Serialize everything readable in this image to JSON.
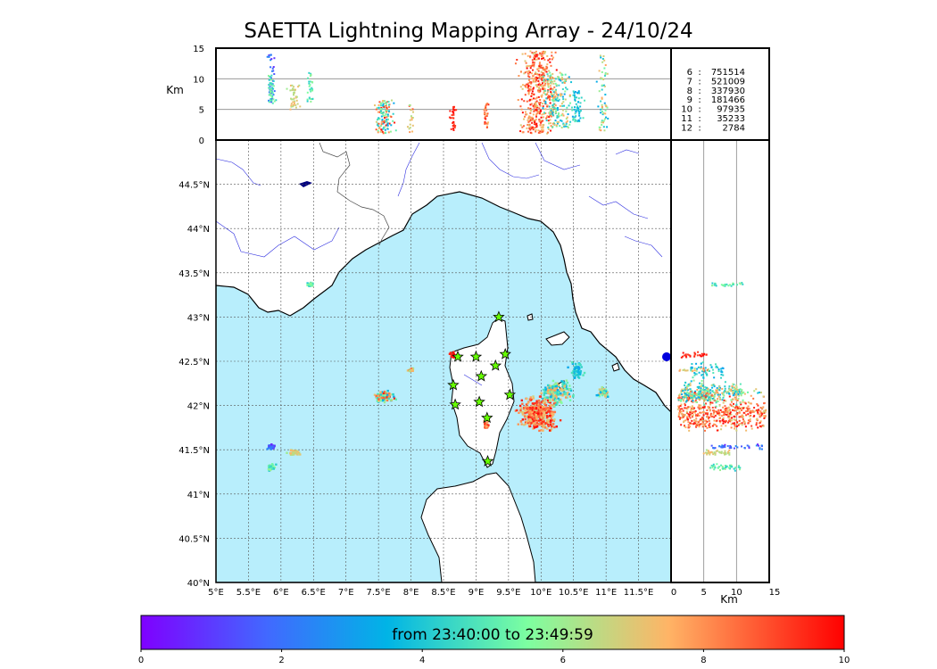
{
  "title": "SAETTA Lightning Mapping Array - 24/10/24",
  "colorbar": {
    "label": "from 23:40:00 to 23:49:59",
    "ticks": [
      "0",
      "2",
      "4",
      "6",
      "8",
      "10"
    ],
    "range": [
      0,
      10
    ],
    "colors": [
      "#7f00ff",
      "#4169ff",
      "#00b4e6",
      "#7dffa0",
      "#ffb466",
      "#ff0000"
    ]
  },
  "counts": [
    {
      "stations": "6",
      "sources": "751514",
      "color": "#000000"
    },
    {
      "stations": "7",
      "sources": "521009",
      "color": "#ff0000"
    },
    {
      "stations": "8",
      "sources": "337930",
      "color": "#000000"
    },
    {
      "stations": "9",
      "sources": "181466",
      "color": "#000000"
    },
    {
      "stations": "10",
      "sources": "97935",
      "color": "#000000"
    },
    {
      "stations": "11",
      "sources": "35233",
      "color": "#000000"
    },
    {
      "stations": "12",
      "sources": "2784",
      "color": "#000000"
    }
  ],
  "colors": {
    "sea": "#b8eefc",
    "land": "#ffffff",
    "rivers": "#3030e0",
    "stations": "#66ff00"
  },
  "chart_data": {
    "type": "scatter",
    "x_axis": {
      "label": "",
      "range": [
        5,
        12
      ],
      "ticks": [
        "5°E",
        "5.5°E",
        "6°E",
        "6.5°E",
        "7°E",
        "7.5°E",
        "8°E",
        "8.5°E",
        "9°E",
        "9.5°E",
        "10°E",
        "10.5°E",
        "11°E",
        "11.5°E"
      ]
    },
    "y_axis": {
      "label": "",
      "range": [
        40,
        45
      ],
      "ticks": [
        "40°N",
        "40.5°N",
        "41°N",
        "41.5°N",
        "42°N",
        "42.5°N",
        "43°N",
        "43.5°N",
        "44°N",
        "44.5°N"
      ]
    },
    "altitude_axis": {
      "label": "Km",
      "range": [
        0,
        15
      ],
      "ticks": [
        "0",
        "5",
        "10",
        "15"
      ]
    },
    "grid": true,
    "stations": [
      {
        "lon": 9.35,
        "lat": 43.0
      },
      {
        "lon": 8.72,
        "lat": 42.55
      },
      {
        "lon": 9.0,
        "lat": 42.55
      },
      {
        "lon": 9.45,
        "lat": 42.58
      },
      {
        "lon": 9.3,
        "lat": 42.45
      },
      {
        "lon": 9.08,
        "lat": 42.33
      },
      {
        "lon": 8.65,
        "lat": 42.23
      },
      {
        "lon": 9.52,
        "lat": 42.12
      },
      {
        "lon": 9.05,
        "lat": 42.04
      },
      {
        "lon": 8.68,
        "lat": 42.01
      },
      {
        "lon": 9.17,
        "lat": 41.86
      },
      {
        "lon": 9.18,
        "lat": 41.37
      }
    ],
    "clusters": [
      {
        "lon": 9.95,
        "lat": 41.9,
        "rlon": 0.38,
        "rlat": 0.25,
        "alt": [
          1,
          14.5
        ],
        "time": [
          6.8,
          10
        ],
        "n": 420
      },
      {
        "lon": 10.25,
        "lat": 42.15,
        "rlon": 0.3,
        "rlat": 0.18,
        "alt": [
          2,
          11
        ],
        "time": [
          3,
          8
        ],
        "n": 200
      },
      {
        "lon": 10.55,
        "lat": 42.4,
        "rlon": 0.15,
        "rlat": 0.12,
        "alt": [
          3,
          8
        ],
        "time": [
          3,
          5
        ],
        "n": 60
      },
      {
        "lon": 10.95,
        "lat": 42.15,
        "rlon": 0.12,
        "rlat": 0.07,
        "alt": [
          1,
          14
        ],
        "time": [
          3,
          8
        ],
        "n": 60
      },
      {
        "lon": 7.6,
        "lat": 42.1,
        "rlon": 0.2,
        "rlat": 0.08,
        "alt": [
          1,
          6.5
        ],
        "time": [
          3,
          10
        ],
        "n": 120
      },
      {
        "lon": 8.0,
        "lat": 42.4,
        "rlon": 0.07,
        "rlat": 0.04,
        "alt": [
          1,
          6
        ],
        "time": [
          6,
          9
        ],
        "n": 20
      },
      {
        "lon": 8.65,
        "lat": 42.57,
        "rlon": 0.06,
        "rlat": 0.05,
        "alt": [
          1.5,
          5.5
        ],
        "time": [
          9,
          10
        ],
        "n": 30
      },
      {
        "lon": 9.15,
        "lat": 41.78,
        "rlon": 0.06,
        "rlat": 0.08,
        "alt": [
          2,
          6
        ],
        "time": [
          7,
          10
        ],
        "n": 30
      },
      {
        "lon": 5.85,
        "lat": 41.53,
        "rlon": 0.08,
        "rlat": 0.04,
        "alt": [
          6,
          14
        ],
        "time": [
          0.5,
          3
        ],
        "n": 40
      },
      {
        "lon": 5.85,
        "lat": 41.3,
        "rlon": 0.09,
        "rlat": 0.05,
        "alt": [
          6,
          11
        ],
        "time": [
          4,
          6
        ],
        "n": 40
      },
      {
        "lon": 6.2,
        "lat": 41.47,
        "rlon": 0.12,
        "rlat": 0.04,
        "alt": [
          5,
          9
        ],
        "time": [
          6,
          7.5
        ],
        "n": 40
      },
      {
        "lon": 6.45,
        "lat": 43.37,
        "rlon": 0.08,
        "rlat": 0.03,
        "alt": [
          6,
          11
        ],
        "time": [
          4,
          6
        ],
        "n": 30
      }
    ]
  }
}
